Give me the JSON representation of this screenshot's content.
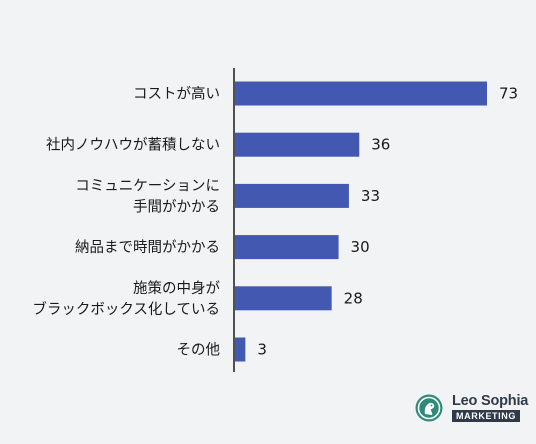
{
  "chart_data": {
    "type": "bar",
    "orientation": "horizontal",
    "categories": [
      [
        "コストが高い"
      ],
      [
        "社内ノウハウが蓄積しない"
      ],
      [
        "コミュニケーションに",
        "手間がかかる"
      ],
      [
        "納品まで時間がかかる"
      ],
      [
        "施策の中身が",
        "ブラックボックス化している"
      ],
      [
        "その他"
      ]
    ],
    "values": [
      73,
      36,
      33,
      30,
      28,
      3
    ],
    "title": "",
    "xlabel": "",
    "ylabel": "",
    "xlim": [
      0,
      80
    ],
    "grid": false,
    "bar_color": "#4358b0",
    "axis_color": "#1a1a1a"
  },
  "logo": {
    "brand": "Leo Sophia",
    "sub": "MARKETING",
    "color": "#2f3a4a",
    "accent": "#2e8b7a"
  }
}
